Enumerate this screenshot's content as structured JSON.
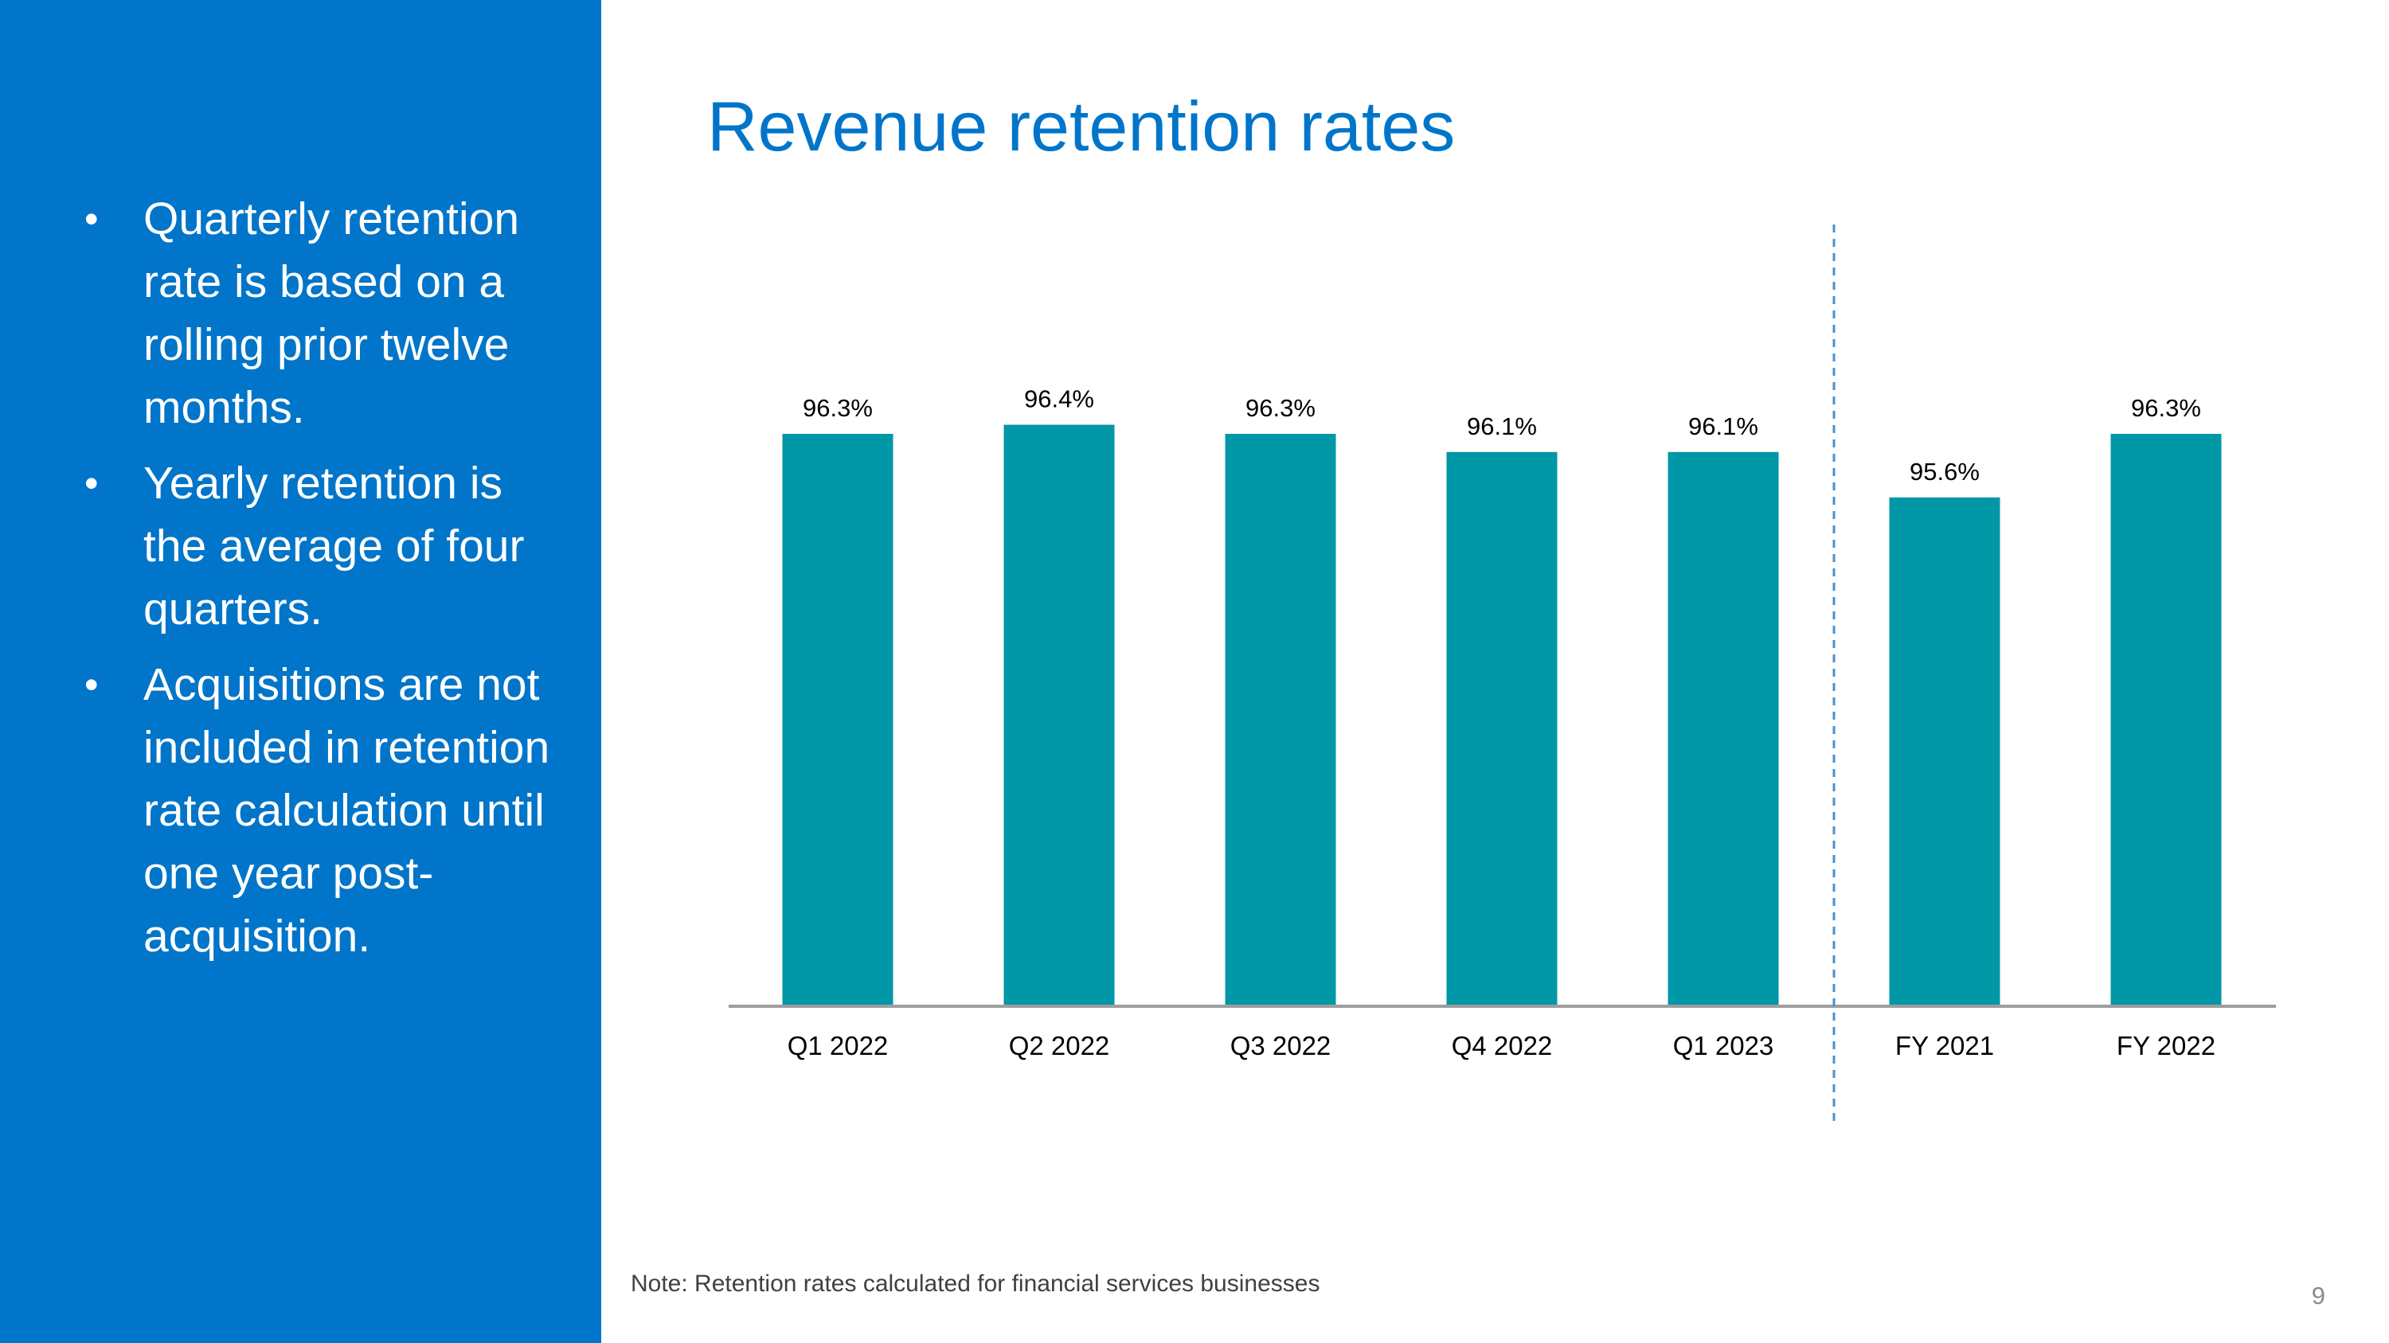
{
  "title": "Revenue retention rates",
  "bullets": [
    "Quarterly retention rate is based on a rolling prior twelve months.",
    "Yearly retention is the average of four quarters.",
    "Acquisitions are not included in retention rate calculation until one year post-acquisition."
  ],
  "bullet_symbol": "•",
  "note": "Note: Retention rates calculated for financial services businesses",
  "page_number": "9",
  "colors": {
    "sidebar": "#0075c9",
    "title": "#0075c9",
    "bar": "#0097a7",
    "divider": "#4a8fd0",
    "axis": "#9e9e9e"
  },
  "chart_data": {
    "type": "bar",
    "title": "Revenue retention rates",
    "categories": [
      "Q1 2022",
      "Q2 2022",
      "Q3 2022",
      "Q4 2022",
      "Q1 2023",
      "FY 2021",
      "FY 2022"
    ],
    "values": [
      96.3,
      96.4,
      96.3,
      96.1,
      96.1,
      95.6,
      96.3
    ],
    "data_labels": [
      "96.3%",
      "96.4%",
      "96.3%",
      "96.1%",
      "96.1%",
      "95.6%",
      "96.3%"
    ],
    "unit": "%",
    "xlabel": "",
    "ylabel": "",
    "ylim": [
      90,
      97.5
    ],
    "grid": false,
    "legend": "none",
    "divider_after_category": "Q1 2023"
  }
}
